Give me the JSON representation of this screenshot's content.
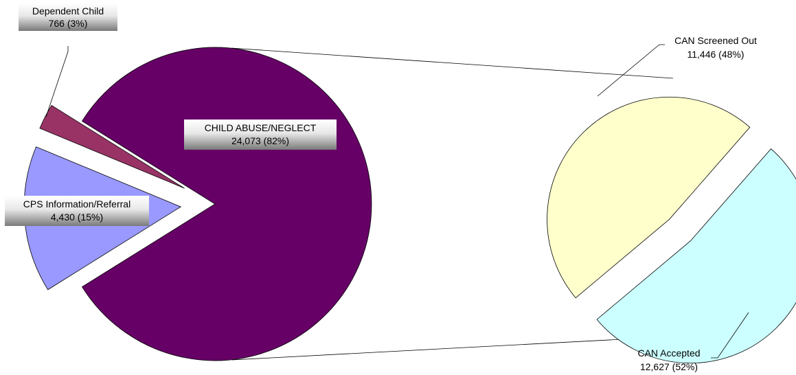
{
  "chart_data": [
    {
      "type": "pie",
      "title": "",
      "slices": [
        {
          "label": "CHILD ABUSE/NEGLECT",
          "value": 24073,
          "value_text": "24,073 (82%)",
          "percent": 82,
          "color": "#660066",
          "exploded": false
        },
        {
          "label": "CPS Information/Referral",
          "value": 4430,
          "value_text": "4,430 (15%)",
          "percent": 15,
          "color": "#9999FF",
          "exploded": true
        },
        {
          "label": "Dependent Child",
          "value": 766,
          "value_text": "766 (3%)",
          "percent": 3,
          "color": "#993366",
          "exploded": true
        }
      ]
    },
    {
      "type": "pie",
      "title": "",
      "breakdown_of": "CHILD ABUSE/NEGLECT",
      "slices": [
        {
          "label": "CAN Screened Out",
          "value": 11446,
          "value_text": "11,446 (48%)",
          "percent": 48,
          "color": "#FFFFCC",
          "exploded": true
        },
        {
          "label": "CAN Accepted",
          "value": 12627,
          "value_text": "12,627 (52%)",
          "percent": 52,
          "color": "#CCFFFF",
          "exploded": true
        }
      ]
    }
  ]
}
